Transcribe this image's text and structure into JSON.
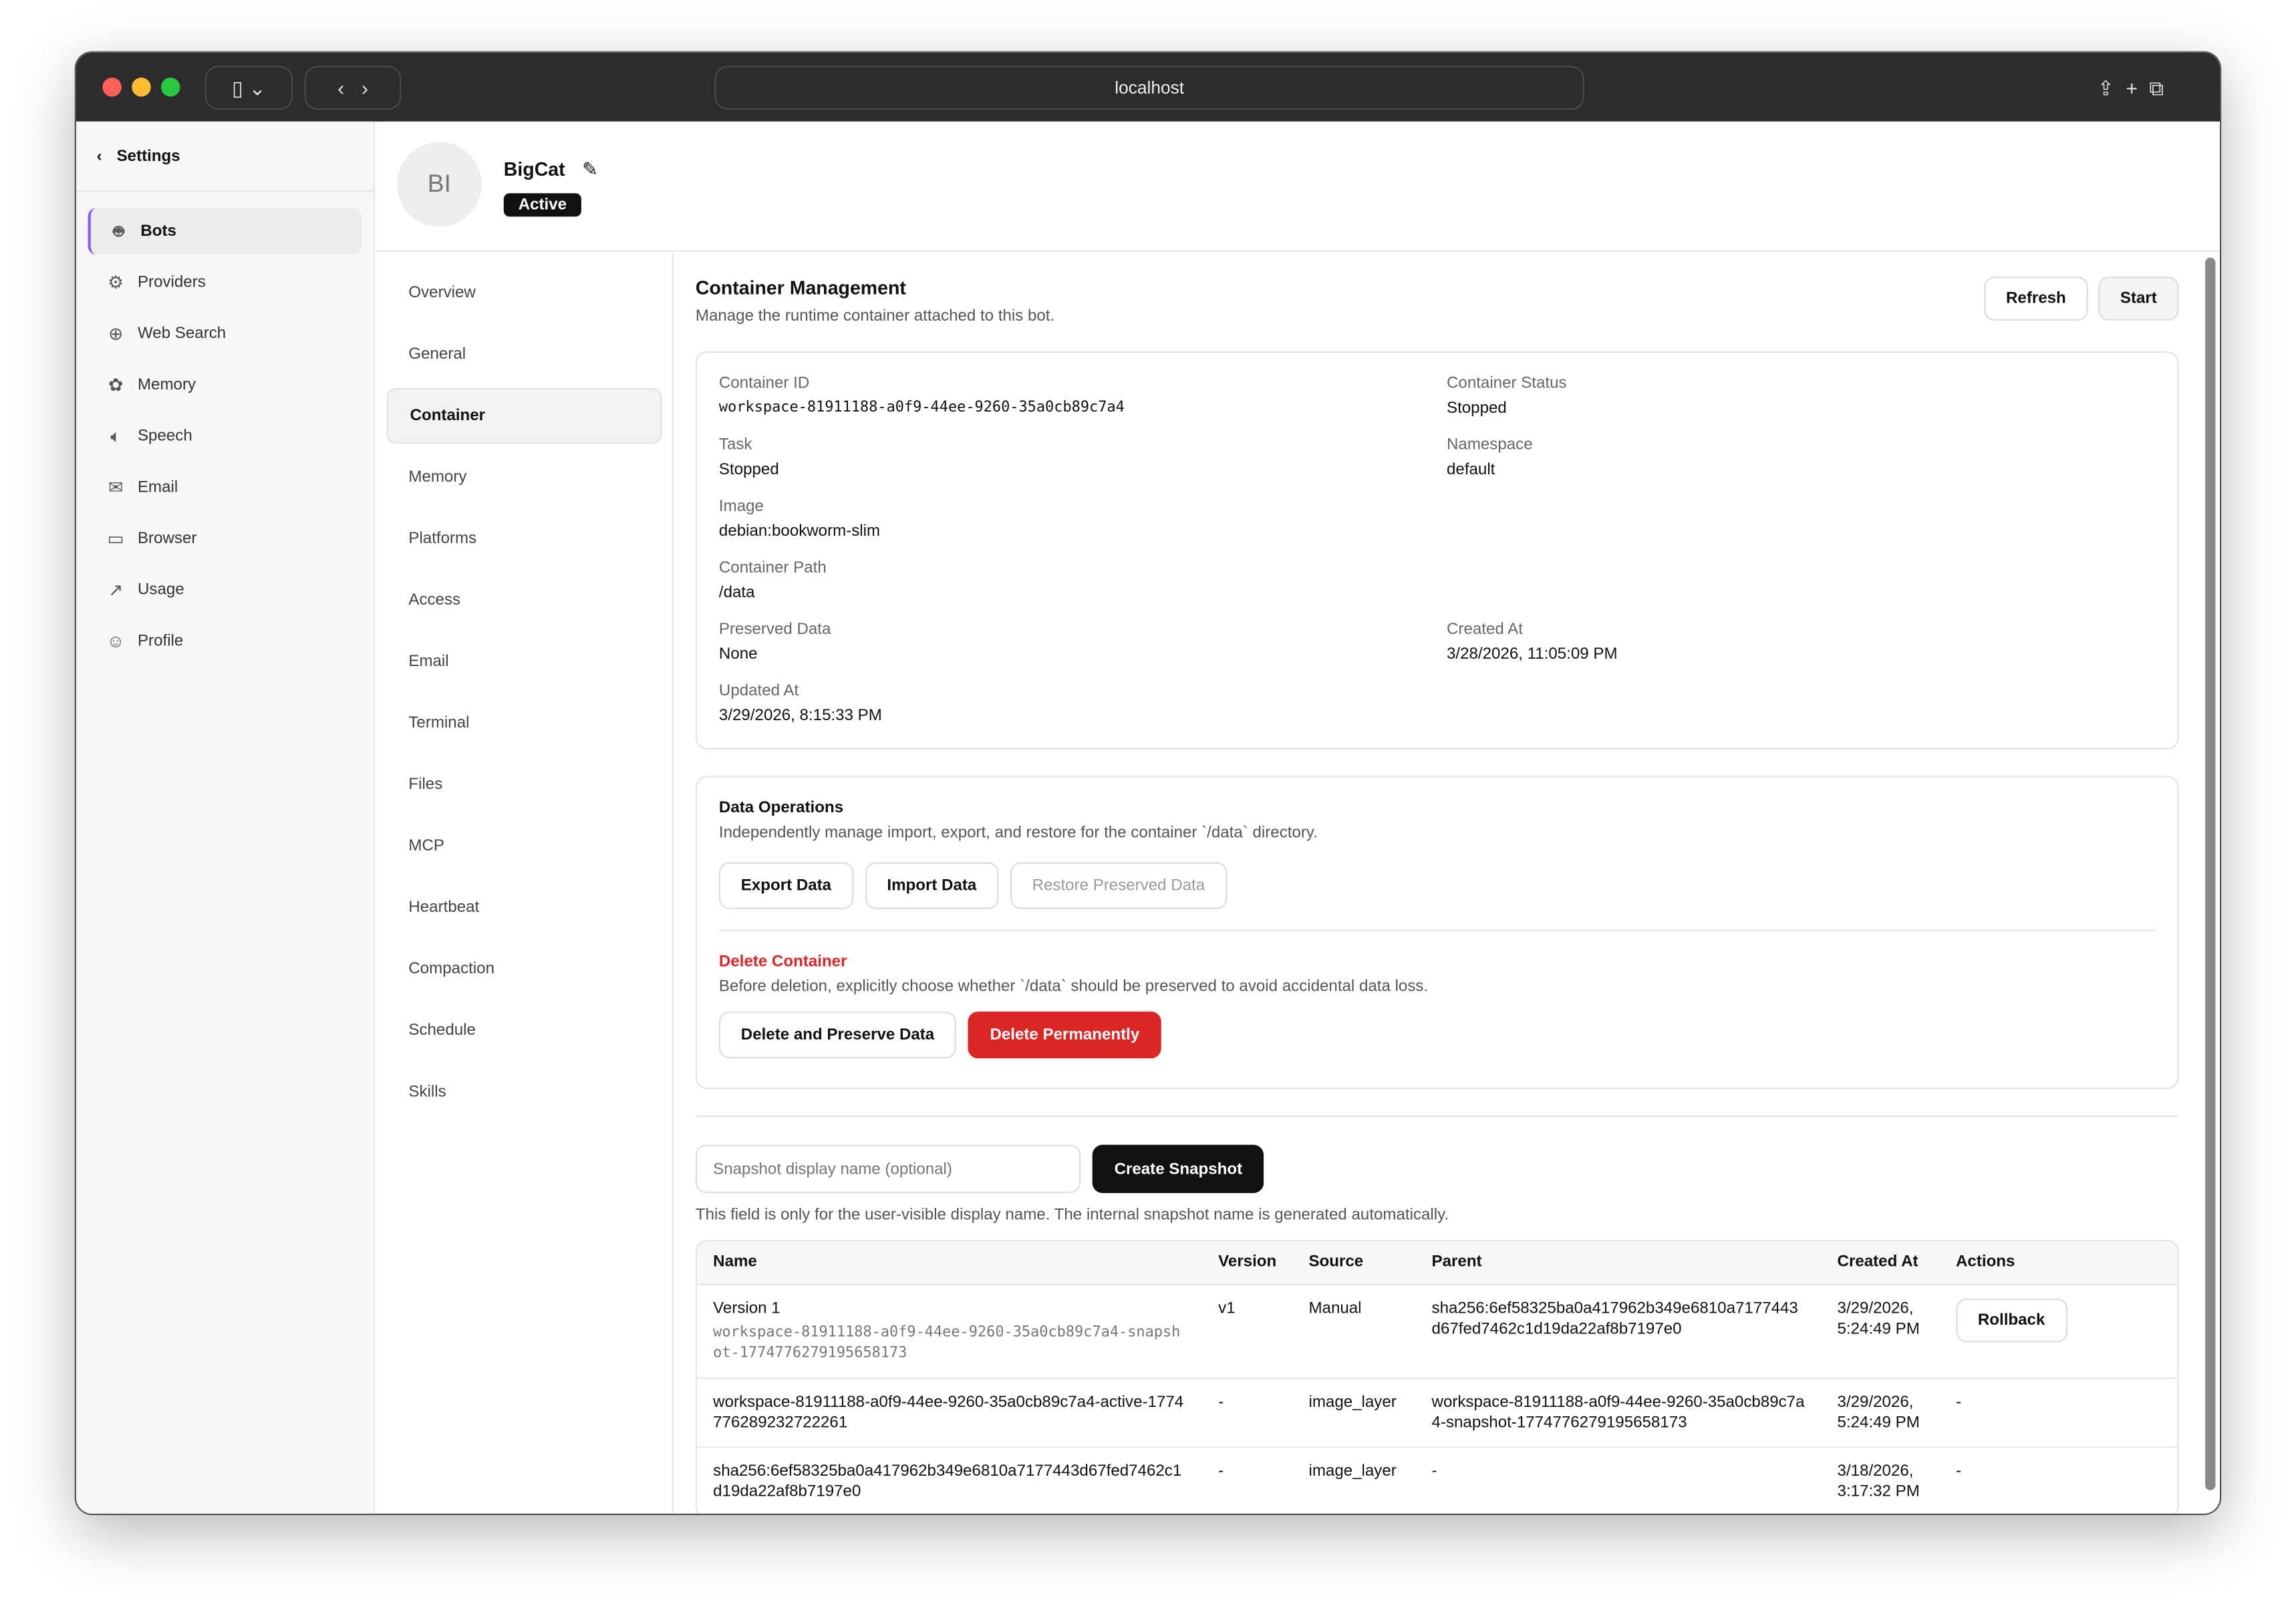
{
  "browser": {
    "url": "localhost"
  },
  "sidebar": {
    "back_label": "Settings",
    "items": [
      {
        "label": "Bots",
        "icon": "bot-icon",
        "active": true
      },
      {
        "label": "Providers",
        "icon": "providers-icon"
      },
      {
        "label": "Web Search",
        "icon": "globe-icon"
      },
      {
        "label": "Memory",
        "icon": "brain-icon"
      },
      {
        "label": "Speech",
        "icon": "speaker-icon"
      },
      {
        "label": "Email",
        "icon": "mail-icon"
      },
      {
        "label": "Browser",
        "icon": "browser-icon"
      },
      {
        "label": "Usage",
        "icon": "chart-icon"
      },
      {
        "label": "Profile",
        "icon": "user-icon"
      }
    ]
  },
  "bot": {
    "initials": "BI",
    "name": "BigCat",
    "status": "Active"
  },
  "subnav": [
    "Overview",
    "General",
    "Container",
    "Memory",
    "Platforms",
    "Access",
    "Email",
    "Terminal",
    "Files",
    "MCP",
    "Heartbeat",
    "Compaction",
    "Schedule",
    "Skills"
  ],
  "subnav_active": "Container",
  "container": {
    "title": "Container Management",
    "subtitle": "Manage the runtime container attached to this bot.",
    "refresh": "Refresh",
    "start": "Start",
    "fields": {
      "id_label": "Container ID",
      "id": "workspace-81911188-a0f9-44ee-9260-35a0cb89c7a4",
      "status_label": "Container Status",
      "status": "Stopped",
      "task_label": "Task",
      "task": "Stopped",
      "ns_label": "Namespace",
      "ns": "default",
      "image_label": "Image",
      "image": "debian:bookworm-slim",
      "path_label": "Container Path",
      "path": "/data",
      "preserved_label": "Preserved Data",
      "preserved": "None",
      "created_label": "Created At",
      "created": "3/28/2026, 11:05:09 PM",
      "updated_label": "Updated At",
      "updated": "3/29/2026, 8:15:33 PM"
    }
  },
  "data_ops": {
    "title": "Data Operations",
    "desc": "Independently manage import, export, and restore for the container `/data` directory.",
    "export": "Export Data",
    "import": "Import Data",
    "restore": "Restore Preserved Data",
    "delete_title": "Delete Container",
    "delete_desc": "Before deletion, explicitly choose whether `/data` should be preserved to avoid accidental data loss.",
    "delete_preserve": "Delete and Preserve Data",
    "delete_perm": "Delete Permanently"
  },
  "snapshot": {
    "placeholder": "Snapshot display name (optional)",
    "create": "Create Snapshot",
    "hint": "This field is only for the user-visible display name. The internal snapshot name is generated automatically.",
    "columns": [
      "Name",
      "Version",
      "Source",
      "Parent",
      "Created At",
      "Actions"
    ],
    "rows": [
      {
        "name": "Version 1",
        "sub": "workspace-81911188-a0f9-44ee-9260-35a0cb89c7a4-snapshot-1774776279195658173",
        "version": "v1",
        "source": "Manual",
        "parent": "sha256:6ef58325ba0a417962b349e6810a7177443d67fed7462c1d19da22af8b7197e0",
        "created": "3/29/2026, 5:24:49 PM",
        "action": "Rollback"
      },
      {
        "name": "workspace-81911188-a0f9-44ee-9260-35a0cb89c7a4-active-1774776289232722261",
        "sub": "",
        "version": "-",
        "source": "image_layer",
        "parent": "workspace-81911188-a0f9-44ee-9260-35a0cb89c7a4-snapshot-1774776279195658173",
        "created": "3/29/2026, 5:24:49 PM",
        "action": "-"
      },
      {
        "name": "sha256:6ef58325ba0a417962b349e6810a7177443d67fed7462c1d19da22af8b7197e0",
        "sub": "",
        "version": "-",
        "source": "image_layer",
        "parent": "-",
        "created": "3/18/2026, 3:17:32 PM",
        "action": "-"
      }
    ]
  },
  "colors": {
    "danger": "#dc2626",
    "accent": "#8b5cf6",
    "dark": "#111111"
  }
}
